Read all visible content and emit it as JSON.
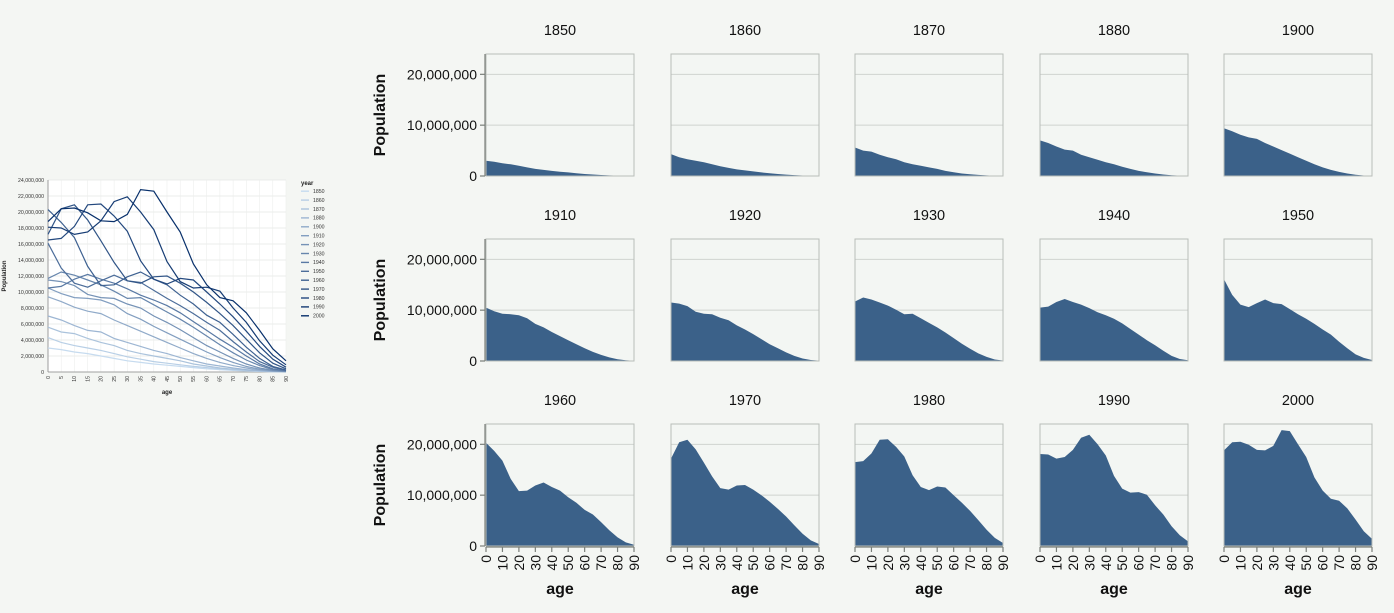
{
  "colors": {
    "area_fill": "#3b6189",
    "grid": "#cfd3cf",
    "axis": "#7a7f7a",
    "frame": "#b9bdb9",
    "panel_bg": "#f3f6f3",
    "line_light": "#c6dbef",
    "line_dark": "#08306b"
  },
  "chart_data": [
    {
      "type": "line",
      "xlabel": "age",
      "ylabel": "Population",
      "legend_title": "year",
      "legend_position": "right",
      "x": [
        0,
        5,
        10,
        15,
        20,
        25,
        30,
        35,
        40,
        45,
        50,
        55,
        60,
        65,
        70,
        75,
        80,
        85,
        90
      ],
      "xlim": [
        0,
        90
      ],
      "ylim": [
        0,
        24000000
      ],
      "y_ticks": [
        0,
        2000000,
        4000000,
        6000000,
        8000000,
        10000000,
        12000000,
        14000000,
        16000000,
        18000000,
        20000000,
        22000000,
        24000000
      ],
      "y_tick_labels": [
        "0",
        "2,000,000",
        "4,000,000",
        "6,000,000",
        "8,000,000",
        "10,000,000",
        "12,000,000",
        "14,000,000",
        "16,000,000",
        "18,000,000",
        "20,000,000",
        "22,000,000",
        "24,000,000"
      ],
      "x_tick_labels": [
        "0",
        "5",
        "10",
        "15",
        "20",
        "25",
        "30",
        "35",
        "40",
        "45",
        "50",
        "55",
        "60",
        "65",
        "70",
        "75",
        "80",
        "85",
        "90"
      ],
      "grid": true,
      "series": [
        {
          "name": "1850",
          "values": [
            3000000,
            2800000,
            2500000,
            2300000,
            2000000,
            1700000,
            1400000,
            1200000,
            1000000,
            850000,
            700000,
            550000,
            400000,
            300000,
            200000,
            120000,
            70000,
            30000,
            10000
          ]
        },
        {
          "name": "1860",
          "values": [
            4300000,
            3700000,
            3300000,
            3000000,
            2700000,
            2300000,
            1900000,
            1600000,
            1300000,
            1100000,
            900000,
            700000,
            550000,
            400000,
            280000,
            170000,
            90000,
            40000,
            15000
          ]
        },
        {
          "name": "1870",
          "values": [
            5600000,
            5000000,
            4800000,
            4200000,
            3700000,
            3300000,
            2700000,
            2300000,
            2000000,
            1700000,
            1400000,
            1000000,
            750000,
            500000,
            350000,
            220000,
            120000,
            50000,
            20000
          ]
        },
        {
          "name": "1880",
          "values": [
            7000000,
            6500000,
            5800000,
            5200000,
            5000000,
            4200000,
            3700000,
            3200000,
            2700000,
            2300000,
            1800000,
            1400000,
            1000000,
            750000,
            500000,
            300000,
            150000,
            70000,
            25000
          ]
        },
        {
          "name": "1900",
          "values": [
            9400000,
            8800000,
            8100000,
            7600000,
            7300000,
            6500000,
            5800000,
            5100000,
            4400000,
            3700000,
            3000000,
            2300000,
            1700000,
            1200000,
            800000,
            500000,
            250000,
            100000,
            40000
          ]
        },
        {
          "name": "1910",
          "values": [
            10500000,
            9800000,
            9300000,
            9200000,
            9000000,
            8400000,
            7300000,
            6600000,
            5700000,
            4900000,
            4100000,
            3300000,
            2500000,
            1800000,
            1200000,
            700000,
            350000,
            150000,
            50000
          ]
        },
        {
          "name": "1920",
          "values": [
            11500000,
            11300000,
            10800000,
            9700000,
            9300000,
            9200000,
            8500000,
            8000000,
            7000000,
            6200000,
            5300000,
            4300000,
            3300000,
            2500000,
            1700000,
            1000000,
            500000,
            200000,
            70000
          ]
        },
        {
          "name": "1930",
          "values": [
            11700000,
            12500000,
            12100000,
            11500000,
            10900000,
            10100000,
            9200000,
            9300000,
            8400000,
            7500000,
            6600000,
            5600000,
            4500000,
            3400000,
            2400000,
            1500000,
            800000,
            300000,
            100000
          ]
        },
        {
          "name": "1940",
          "values": [
            10500000,
            10700000,
            11600000,
            12200000,
            11600000,
            11100000,
            10400000,
            9600000,
            9000000,
            8300000,
            7400000,
            6300000,
            5200000,
            4100000,
            3100000,
            2000000,
            1000000,
            400000,
            150000
          ]
        },
        {
          "name": "1950",
          "values": [
            16100000,
            13000000,
            11100000,
            10600000,
            11400000,
            12100000,
            11400000,
            11200000,
            10200000,
            9200000,
            8300000,
            7300000,
            6200000,
            5200000,
            3800000,
            2500000,
            1300000,
            600000,
            200000
          ]
        },
        {
          "name": "1960",
          "values": [
            20300000,
            18700000,
            16800000,
            13200000,
            10800000,
            10900000,
            11900000,
            12500000,
            11600000,
            10900000,
            9600000,
            8500000,
            7100000,
            6200000,
            4700000,
            3100000,
            1700000,
            700000,
            250000
          ]
        },
        {
          "name": "1970",
          "values": [
            17200000,
            20400000,
            20900000,
            19000000,
            16400000,
            13700000,
            11400000,
            11100000,
            11900000,
            12000000,
            11100000,
            10000000,
            8700000,
            7300000,
            5800000,
            4100000,
            2400000,
            1100000,
            400000
          ]
        },
        {
          "name": "1980",
          "values": [
            16500000,
            16700000,
            18200000,
            20900000,
            21000000,
            19500000,
            17600000,
            13900000,
            11600000,
            11000000,
            11700000,
            11500000,
            10000000,
            8500000,
            6900000,
            5100000,
            3200000,
            1600000,
            600000
          ]
        },
        {
          "name": "1990",
          "values": [
            18100000,
            18000000,
            17200000,
            17500000,
            18900000,
            21300000,
            21900000,
            20000000,
            17800000,
            13800000,
            11300000,
            10500000,
            10600000,
            10100000,
            8000000,
            6200000,
            3900000,
            2100000,
            900000
          ]
        },
        {
          "name": "2000",
          "values": [
            18800000,
            20400000,
            20500000,
            19900000,
            18900000,
            18800000,
            19700000,
            22800000,
            22600000,
            20000000,
            17500000,
            13500000,
            10900000,
            9300000,
            8900000,
            7400000,
            5200000,
            2900000,
            1400000
          ]
        }
      ]
    },
    {
      "type": "area",
      "layout": "small-multiples",
      "ylabel": "Population",
      "xlabel": "age",
      "ylim": [
        0,
        24000000
      ],
      "y_ticks": [
        0,
        10000000,
        20000000
      ],
      "y_tick_labels": [
        "0",
        "10,000,000",
        "20,000,000"
      ],
      "x_ticks": [
        0,
        10,
        20,
        30,
        40,
        50,
        60,
        70,
        80,
        90
      ],
      "x_tick_labels": [
        "0",
        "10",
        "20",
        "30",
        "40",
        "50",
        "60",
        "70",
        "80",
        "90"
      ],
      "facets": [
        "1850",
        "1860",
        "1870",
        "1880",
        "1900",
        "1910",
        "1920",
        "1930",
        "1940",
        "1950",
        "1960",
        "1970",
        "1980",
        "1990",
        "2000"
      ],
      "note": ""
    }
  ]
}
